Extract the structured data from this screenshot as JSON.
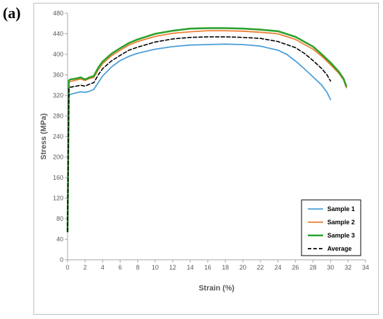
{
  "panel_label": "(a)",
  "chart_data": {
    "type": "line",
    "xlabel": "Strain (%)",
    "ylabel": "Stress  (MPa)",
    "xlim": [
      0,
      34
    ],
    "ylim": [
      0,
      480
    ],
    "xticks": [
      0,
      2,
      4,
      6,
      8,
      10,
      12,
      14,
      16,
      18,
      20,
      22,
      24,
      26,
      28,
      30,
      32,
      34
    ],
    "yticks": [
      0,
      40,
      80,
      120,
      160,
      200,
      240,
      280,
      320,
      360,
      400,
      440,
      480
    ],
    "grid": false,
    "legend_position": "bottom-right",
    "series": [
      {
        "name": "Sample 1",
        "color": "#4a9fd8",
        "dashed": false,
        "x": [
          0,
          0.15,
          0.3,
          1,
          1.5,
          2,
          2.5,
          3,
          3.5,
          4,
          5,
          6,
          7,
          8,
          10,
          12,
          14,
          16,
          18,
          20,
          22,
          24,
          25,
          26,
          27,
          28,
          29,
          29.6,
          30
        ],
        "y": [
          55,
          318,
          322,
          325,
          327,
          326,
          328,
          332,
          345,
          358,
          375,
          388,
          396,
          402,
          410,
          415,
          418,
          419,
          420,
          419,
          416,
          408,
          400,
          387,
          372,
          356,
          340,
          326,
          312
        ]
      },
      {
        "name": "Sample 2",
        "color": "#ed7d31",
        "dashed": false,
        "x": [
          0,
          0.15,
          0.3,
          1,
          1.5,
          2,
          2.5,
          3,
          3.5,
          4,
          5,
          6,
          7,
          8,
          10,
          12,
          14,
          16,
          18,
          20,
          22,
          24,
          26,
          28,
          29,
          30,
          31,
          31.5,
          31.8
        ],
        "y": [
          55,
          345,
          347,
          350,
          352,
          349,
          353,
          355,
          370,
          382,
          397,
          408,
          418,
          425,
          435,
          441,
          444,
          446,
          446,
          445,
          443,
          440,
          429,
          410,
          396,
          380,
          362,
          350,
          335
        ]
      },
      {
        "name": "Sample 3",
        "color": "#2ca02c",
        "dashed": false,
        "x": [
          0,
          0.15,
          0.3,
          1,
          1.5,
          2,
          2.5,
          3,
          3.5,
          4,
          5,
          6,
          7,
          8,
          10,
          12,
          14,
          16,
          18,
          20,
          22,
          24,
          26,
          28,
          29,
          30,
          31,
          31.5,
          31.8
        ],
        "y": [
          55,
          349,
          351,
          353,
          355,
          351,
          355,
          358,
          374,
          386,
          401,
          412,
          422,
          429,
          440,
          446,
          450,
          451,
          451,
          450,
          448,
          445,
          434,
          415,
          400,
          384,
          365,
          352,
          338
        ]
      },
      {
        "name": "Average",
        "color": "#000000",
        "dashed": true,
        "x": [
          0,
          0.15,
          0.3,
          1,
          1.5,
          2,
          2.5,
          3,
          3.5,
          4,
          5,
          6,
          7,
          8,
          10,
          12,
          14,
          16,
          18,
          20,
          22,
          24,
          26,
          27,
          28,
          29,
          29.6,
          30
        ],
        "y": [
          55,
          333,
          336,
          338,
          340,
          338,
          342,
          345,
          360,
          372,
          387,
          398,
          408,
          414,
          424,
          430,
          433,
          434,
          434,
          433,
          431,
          425,
          413,
          402,
          388,
          372,
          360,
          348
        ]
      }
    ]
  }
}
